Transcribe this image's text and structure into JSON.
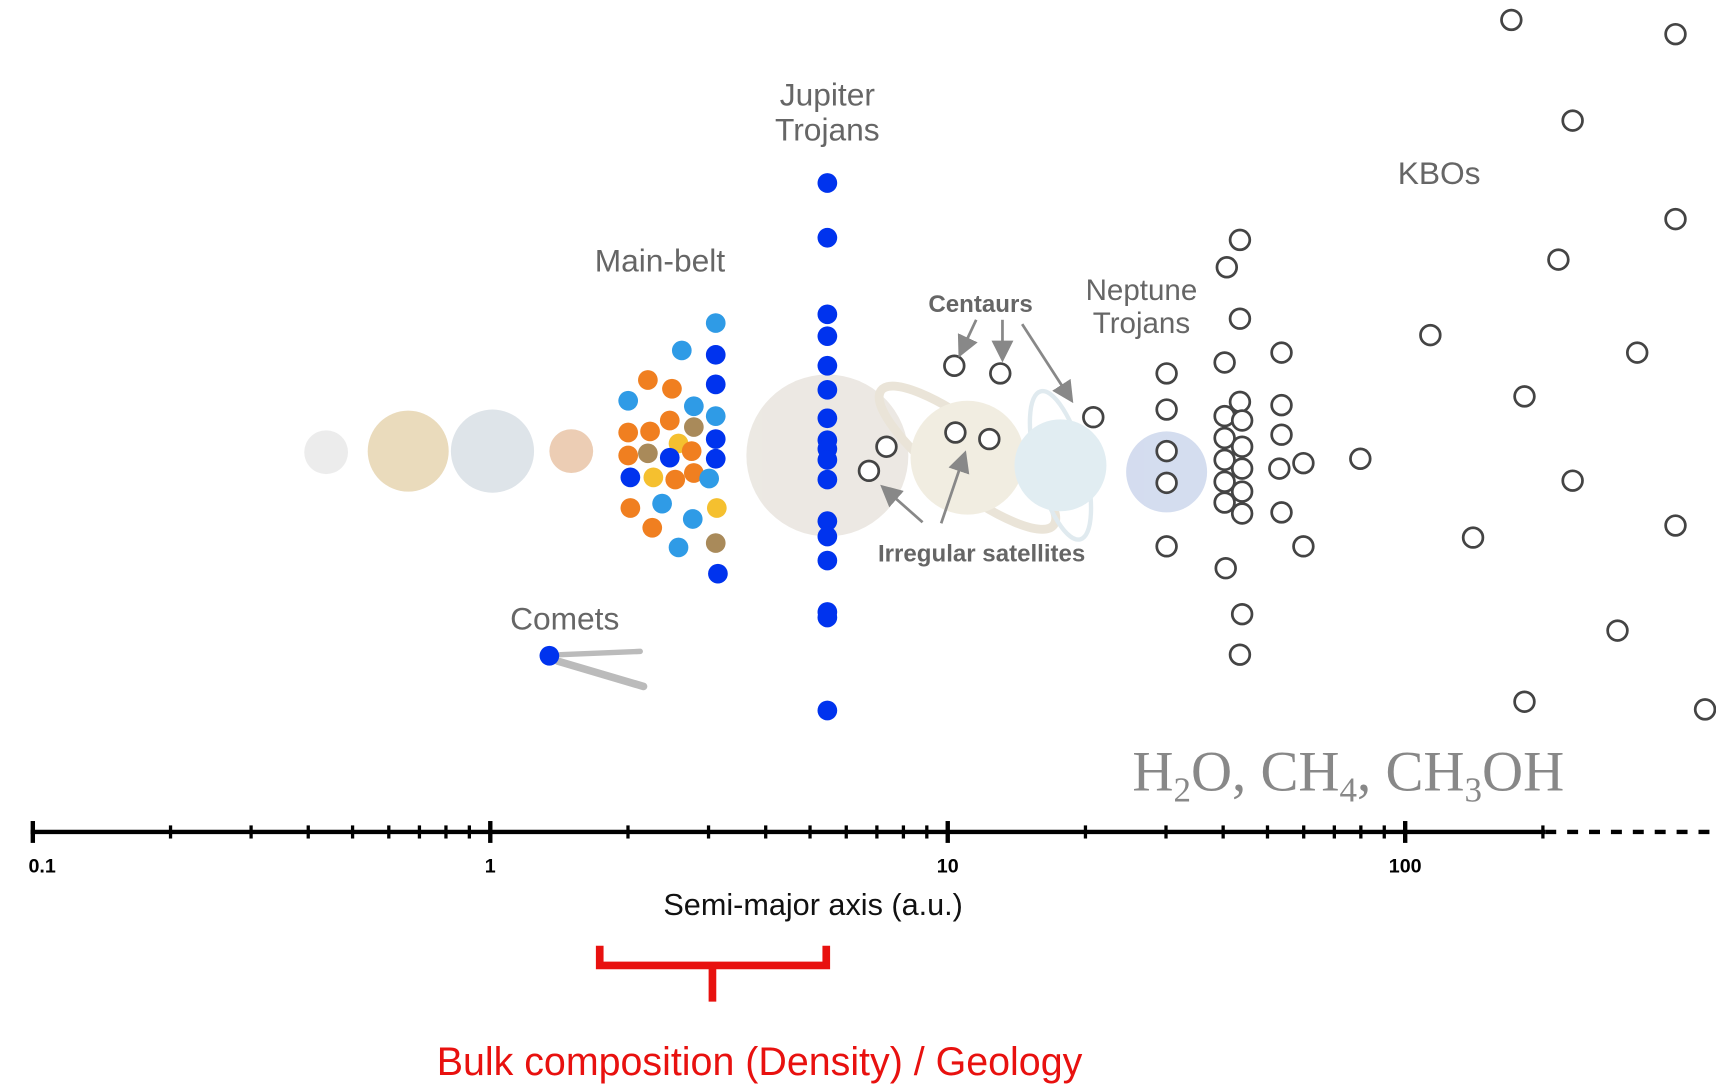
{
  "labels": {
    "jupiter_trojans": [
      "Jupiter",
      "Trojans"
    ],
    "main_belt": "Main-belt",
    "comets": "Comets",
    "centaurs": "Centaurs",
    "neptune_trojans": [
      "Neptune",
      "Trojans"
    ],
    "irregular_satellites": "Irregular satellites",
    "kbos": "KBOs",
    "formula": [
      "H",
      "2",
      "O, CH",
      "4",
      ", CH",
      "3",
      "OH"
    ]
  },
  "axis": {
    "title": "Semi-major axis (a.u.)",
    "tick_labels": [
      "0.1",
      "1",
      "10",
      "100"
    ]
  },
  "annotation": "Bulk composition (Density) / Geology"
}
